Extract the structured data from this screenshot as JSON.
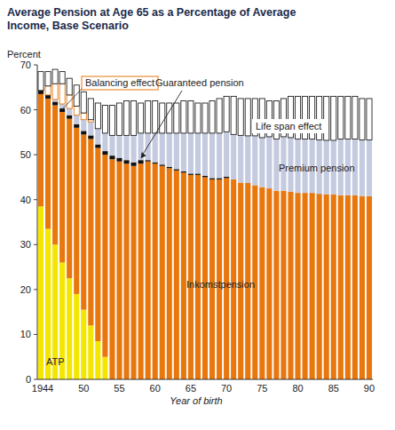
{
  "chart_data": {
    "type": "bar",
    "stacked": true,
    "title": "Average Pension at Age 65 as a Percentage of Average Income, Base Scenario",
    "y_label": "Percent",
    "x_label": "Year of birth",
    "categories": [
      "1944",
      null,
      null,
      null,
      null,
      null,
      "50",
      null,
      null,
      null,
      null,
      "55",
      null,
      null,
      null,
      null,
      "60",
      null,
      null,
      null,
      null,
      "65",
      null,
      null,
      null,
      null,
      "70",
      null,
      null,
      null,
      null,
      "75",
      null,
      null,
      null,
      null,
      "80",
      null,
      null,
      null,
      null,
      "85",
      null,
      null,
      null,
      null,
      "90"
    ],
    "ylim": [
      0,
      70
    ],
    "yticks": [
      0,
      10,
      20,
      30,
      40,
      50,
      60,
      70
    ],
    "series": [
      {
        "name": "ATP",
        "color": "#f5e600",
        "values": [
          38.5,
          33.5,
          30,
          26,
          22.5,
          19,
          15.5,
          12,
          8.5,
          5,
          0,
          0,
          0,
          0,
          0,
          0,
          0,
          0,
          0,
          0,
          0,
          0,
          0,
          0,
          0,
          0,
          0,
          0,
          0,
          0,
          0,
          0,
          0,
          0,
          0,
          0,
          0,
          0,
          0,
          0,
          0,
          0,
          0,
          0,
          0,
          0,
          0
        ]
      },
      {
        "name": "Inkomstpension",
        "color": "#e8770e",
        "values": [
          25,
          29,
          31,
          33.5,
          35.5,
          37,
          39,
          41.5,
          43,
          45,
          49,
          48.5,
          48,
          47.5,
          48,
          48.5,
          48,
          47.5,
          47,
          46.5,
          46,
          45.5,
          45.5,
          45,
          44.5,
          44.5,
          44.8,
          44.5,
          43.8,
          43.7,
          43.2,
          42.8,
          42.5,
          42,
          42,
          41.8,
          41.5,
          41.5,
          41.5,
          41.3,
          41.2,
          41.2,
          41,
          41,
          41,
          40.8,
          40.8
        ]
      },
      {
        "name": "Guaranteed pension",
        "color": "#111111",
        "values": [
          0.8,
          0.8,
          0.8,
          0.8,
          0.8,
          0.8,
          0.8,
          0.8,
          0.8,
          0.8,
          0.8,
          0.8,
          0.8,
          0.8,
          0.8,
          0.3,
          0.3,
          0.3,
          0.3,
          0.3,
          0.3,
          0.3,
          0.3,
          0.3,
          0.3,
          0.3,
          0.3,
          0,
          0,
          0,
          0,
          0,
          0,
          0,
          0,
          0,
          0,
          0,
          0,
          0,
          0,
          0,
          0,
          0,
          0,
          0,
          0
        ]
      },
      {
        "name": "Premium pension",
        "color": "#c4cadf",
        "values": [
          0,
          0,
          0.5,
          1,
          1.5,
          2,
          2.5,
          3,
          3.5,
          4,
          4.5,
          5,
          5.5,
          6,
          6,
          6,
          6.5,
          7,
          7.5,
          8,
          8.5,
          9,
          9,
          9.5,
          10,
          10,
          10,
          10,
          10.5,
          10.5,
          11,
          11,
          11.5,
          11.5,
          12,
          12,
          12,
          12,
          12,
          12,
          12,
          12,
          12.5,
          12.5,
          12.5,
          12.5,
          12.5
        ]
      },
      {
        "name": "Balancing effect",
        "color": "#ffffff",
        "values": [
          0,
          2,
          3.5,
          4.5,
          3,
          2,
          1.5,
          0.5,
          0,
          0,
          0,
          0,
          0,
          0,
          0,
          0,
          0,
          0,
          0,
          0,
          0,
          0,
          0,
          0,
          0,
          0,
          0,
          0,
          0,
          0,
          0,
          0,
          0,
          0,
          0,
          0,
          0,
          0,
          0,
          0,
          0,
          0,
          0,
          0,
          0,
          0,
          0
        ]
      },
      {
        "name": "Life span effect",
        "color": "#ffffff",
        "values": [
          4.2,
          3.2,
          3.2,
          2.7,
          3.7,
          4.7,
          4.7,
          4.7,
          5.7,
          6.2,
          6.7,
          7.2,
          7.7,
          7.7,
          6.7,
          7.2,
          7.2,
          6.7,
          6.7,
          6.7,
          7.2,
          7.2,
          6.7,
          6.7,
          7.2,
          7.7,
          7.9,
          8.5,
          8.2,
          8.3,
          8.3,
          8.7,
          8,
          8.5,
          8.5,
          9.2,
          9.5,
          9.5,
          9.5,
          9.7,
          9.8,
          9.8,
          9.5,
          9.5,
          9.5,
          9.2,
          9.2
        ]
      }
    ]
  }
}
